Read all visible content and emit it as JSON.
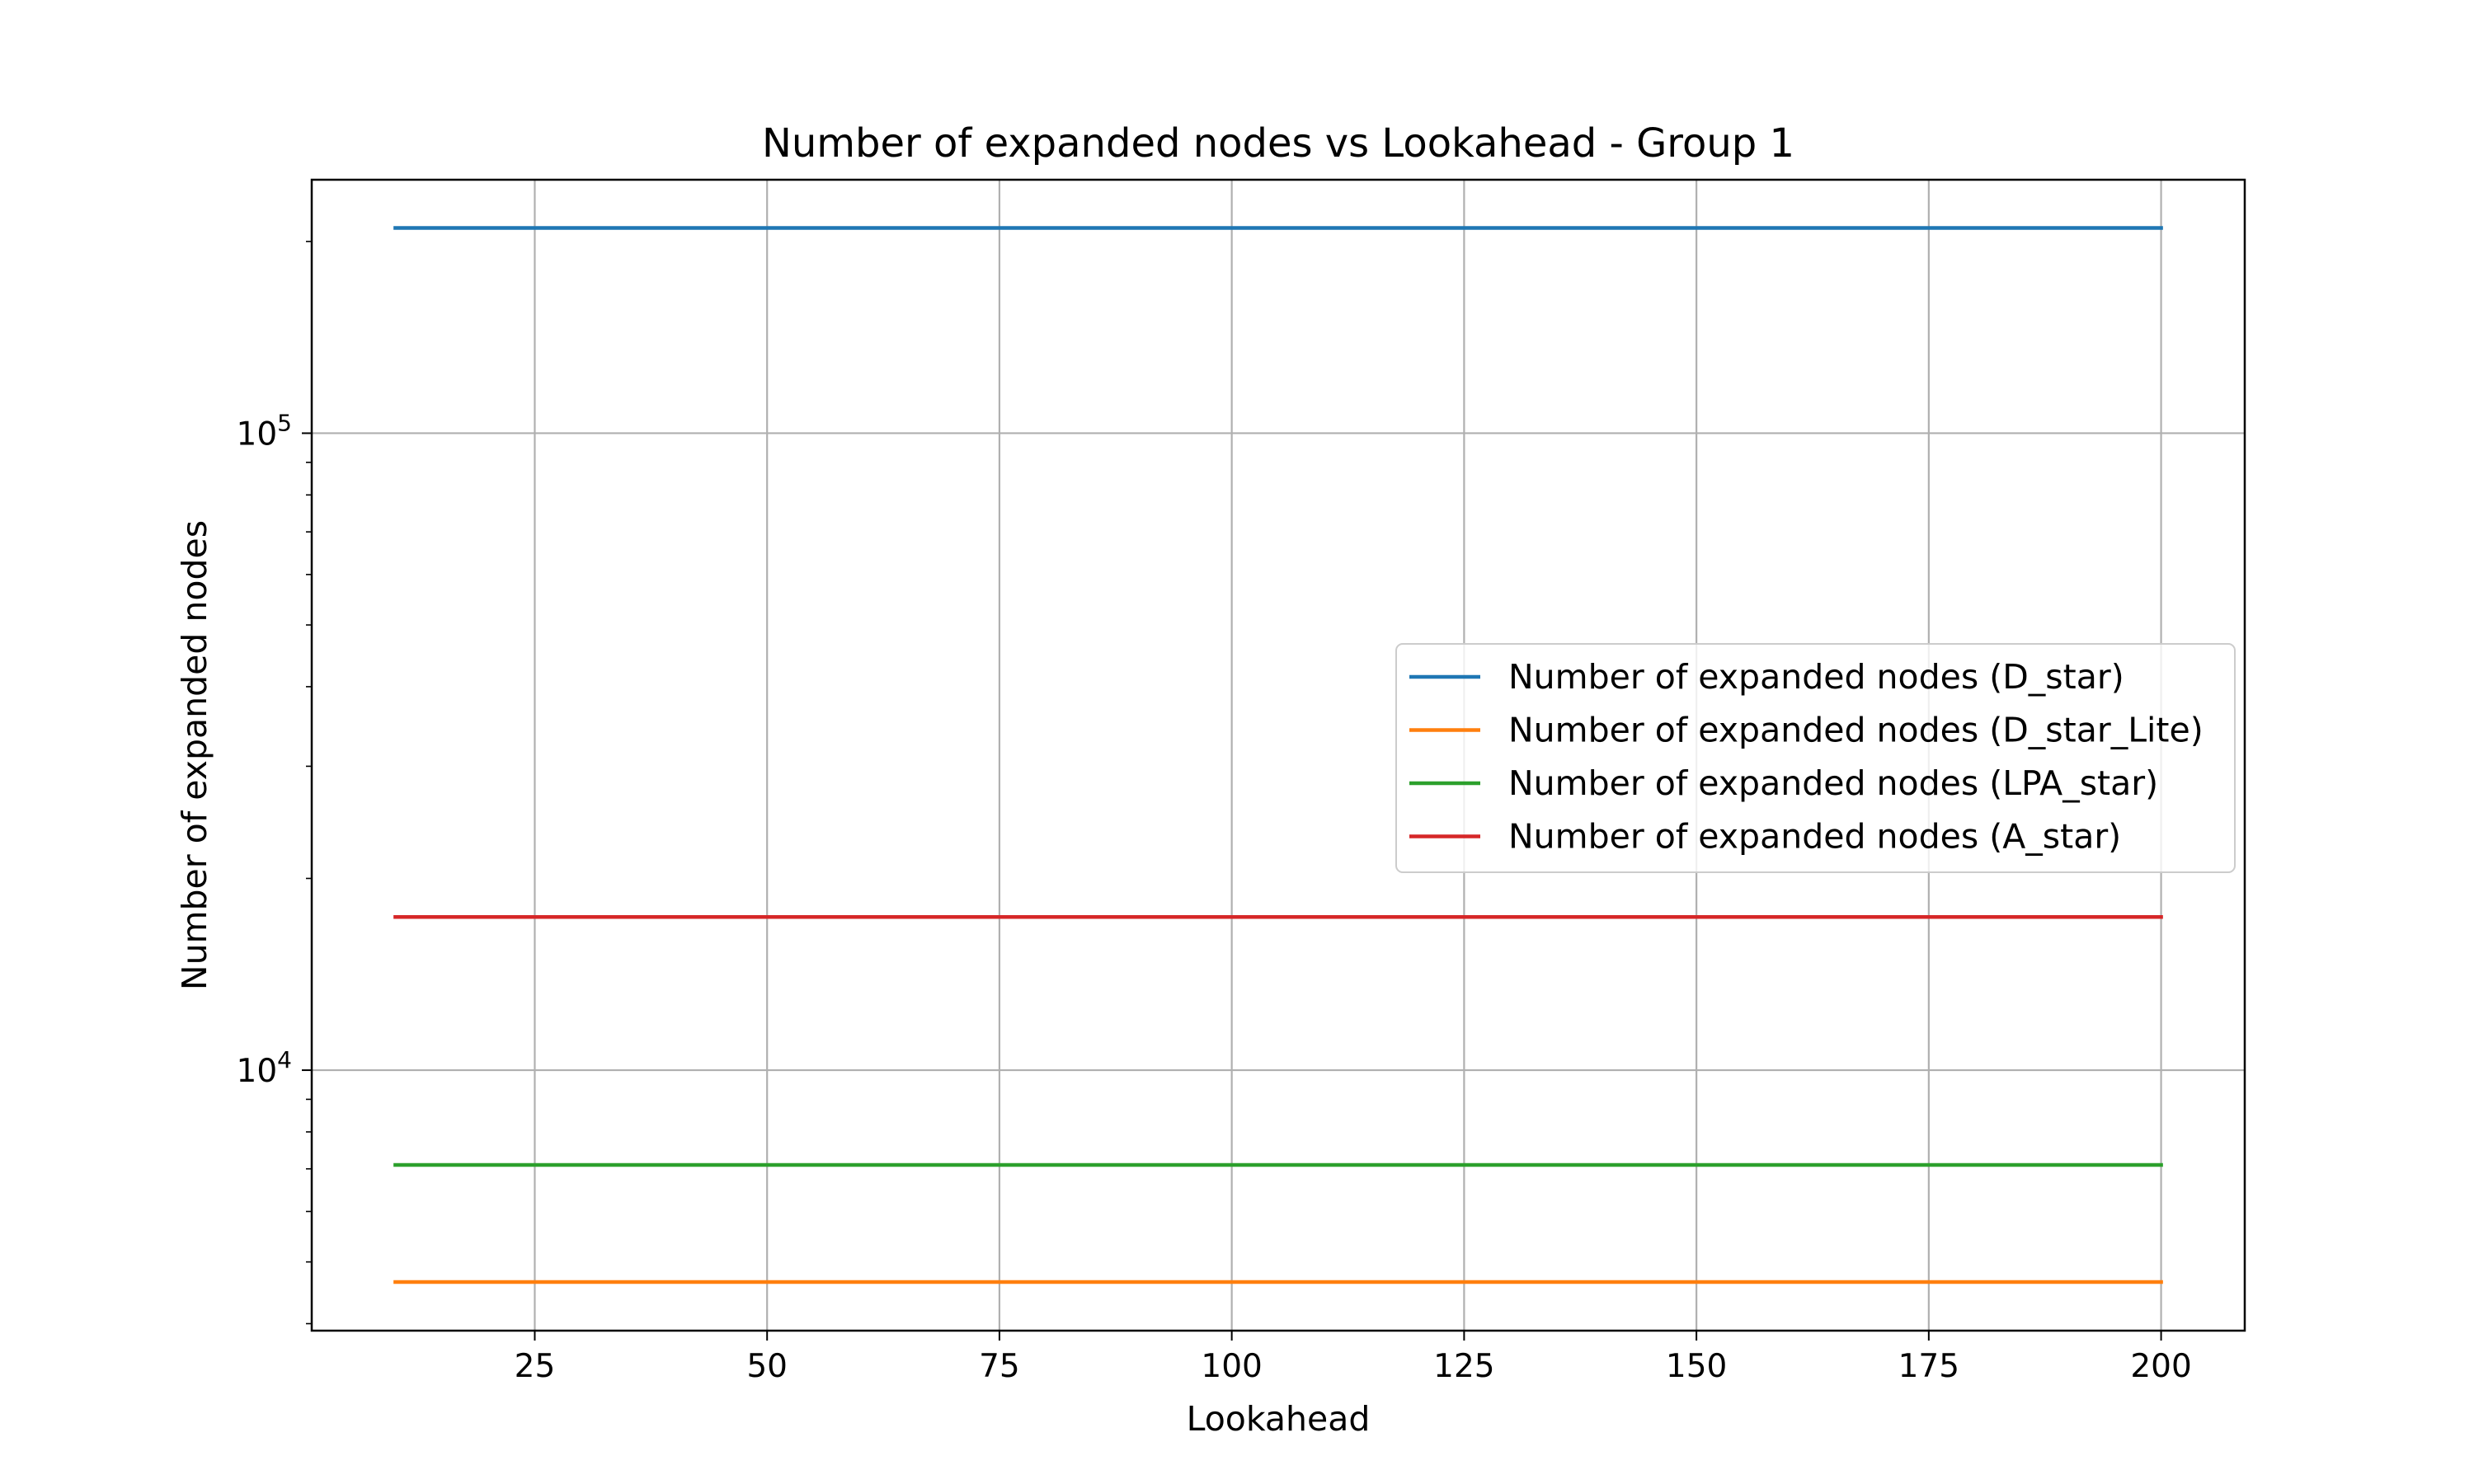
{
  "chart_data": {
    "type": "line",
    "title": "Number of expanded nodes vs Lookahead - Group 1",
    "xlabel": "Lookahead",
    "ylabel": "Number of expanded nodes",
    "y_scale": "log",
    "xlim": [
      1,
      209
    ],
    "ylim": [
      3900,
      250000
    ],
    "x_ticks": [
      25,
      50,
      75,
      100,
      125,
      150,
      175,
      200
    ],
    "x_tick_labels": [
      "25",
      "50",
      "75",
      "100",
      "125",
      "150",
      "175",
      "200"
    ],
    "y_ticks": [
      10000,
      100000
    ],
    "y_tick_labels": [
      {
        "base": "10",
        "exp": "4"
      },
      {
        "base": "10",
        "exp": "5"
      }
    ],
    "grid": true,
    "legend_position": "center-right",
    "x": [
      10,
      200
    ],
    "series": [
      {
        "name": "Number of expanded nodes (D_star)",
        "color": "#1f77b4",
        "values": [
          210000,
          210000
        ]
      },
      {
        "name": "Number of expanded nodes (D_star_Lite)",
        "color": "#ff7f0e",
        "values": [
          4650,
          4650
        ]
      },
      {
        "name": "Number of expanded nodes (LPA_star)",
        "color": "#2ca02c",
        "values": [
          7100,
          7100
        ]
      },
      {
        "name": "Number of expanded nodes (A_star)",
        "color": "#d62728",
        "values": [
          17400,
          17400
        ]
      }
    ]
  }
}
